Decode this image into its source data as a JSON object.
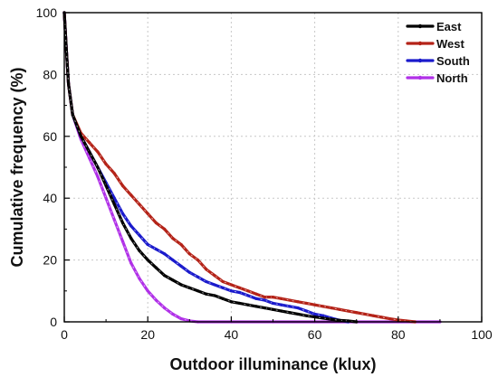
{
  "chart_data": {
    "type": "line",
    "xlabel": "Outdoor illuminance (klux)",
    "ylabel": "Cumulative frequency (%)",
    "xlim": [
      0,
      100
    ],
    "ylim": [
      0,
      100
    ],
    "xticks": [
      0,
      20,
      40,
      60,
      80,
      100
    ],
    "yticks": [
      0,
      20,
      40,
      60,
      80,
      100
    ],
    "xtick_labels": [
      "0",
      "20",
      "40",
      "60",
      "80",
      "100"
    ],
    "ytick_labels": [
      "0",
      "20",
      "40",
      "60",
      "80",
      "100"
    ],
    "grid": true,
    "legend_position": "top-right",
    "series": [
      {
        "name": "East",
        "color": "#000000",
        "x": [
          0,
          0.5,
          1,
          2,
          4,
          6,
          8,
          10,
          12,
          14,
          16,
          18,
          20,
          22,
          24,
          26,
          28,
          30,
          32,
          34,
          36,
          38,
          40,
          42,
          44,
          46,
          48,
          50,
          52,
          54,
          56,
          58,
          60,
          62,
          64,
          66,
          68,
          70
        ],
        "values": [
          100,
          88,
          77,
          67,
          60,
          55,
          50,
          44,
          38,
          32,
          27,
          23,
          20,
          17.5,
          15,
          13.5,
          12,
          11,
          10,
          9,
          8.5,
          7.5,
          6.5,
          6,
          5.5,
          5,
          4.5,
          4,
          3.5,
          3,
          2.5,
          2,
          1.6,
          1.2,
          0.8,
          0.5,
          0.3,
          0
        ]
      },
      {
        "name": "West",
        "color": "#b42318",
        "x": [
          0,
          0.5,
          1,
          2,
          4,
          6,
          8,
          10,
          12,
          14,
          16,
          18,
          20,
          22,
          24,
          26,
          28,
          30,
          32,
          34,
          36,
          38,
          40,
          42,
          44,
          46,
          48,
          50,
          52,
          54,
          56,
          58,
          60,
          62,
          64,
          66,
          68,
          70,
          72,
          74,
          76,
          78,
          80,
          82,
          84
        ],
        "values": [
          100,
          88,
          77,
          67,
          61,
          58,
          55,
          51,
          48,
          44,
          41,
          38,
          35,
          32,
          30,
          27,
          25,
          22,
          20,
          17,
          15,
          13,
          12,
          11,
          10,
          9,
          8,
          8,
          7.5,
          7,
          6.5,
          6,
          5.5,
          5,
          4.5,
          4,
          3.5,
          3,
          2.5,
          2,
          1.5,
          1,
          0.6,
          0.3,
          0
        ]
      },
      {
        "name": "South",
        "color": "#1a1acc",
        "x": [
          0,
          0.5,
          1,
          2,
          4,
          6,
          8,
          10,
          12,
          14,
          16,
          18,
          20,
          22,
          24,
          26,
          28,
          30,
          32,
          34,
          36,
          38,
          40,
          42,
          44,
          46,
          48,
          50,
          52,
          54,
          56,
          58,
          60,
          62,
          64,
          66,
          68
        ],
        "values": [
          100,
          88,
          77,
          67,
          60,
          55,
          50,
          45,
          40,
          35,
          31,
          28,
          25,
          23.5,
          22,
          20,
          18,
          16,
          14.5,
          13,
          12,
          11,
          10,
          9.5,
          8.5,
          7.5,
          7,
          6,
          5.5,
          5,
          4.5,
          3.5,
          2.5,
          2,
          1.2,
          0.5,
          0
        ]
      },
      {
        "name": "North",
        "color": "#b030e8",
        "x": [
          0,
          0.5,
          1,
          2,
          4,
          6,
          8,
          10,
          12,
          14,
          16,
          18,
          20,
          22,
          24,
          26,
          28,
          30,
          32,
          40,
          50,
          60,
          70,
          80,
          90
        ],
        "values": [
          100,
          88,
          77,
          67,
          59,
          53,
          47,
          40,
          33,
          26,
          19,
          14,
          10,
          7,
          4.5,
          2.5,
          1,
          0.3,
          0,
          0,
          0,
          0,
          0,
          0,
          0
        ]
      }
    ]
  }
}
